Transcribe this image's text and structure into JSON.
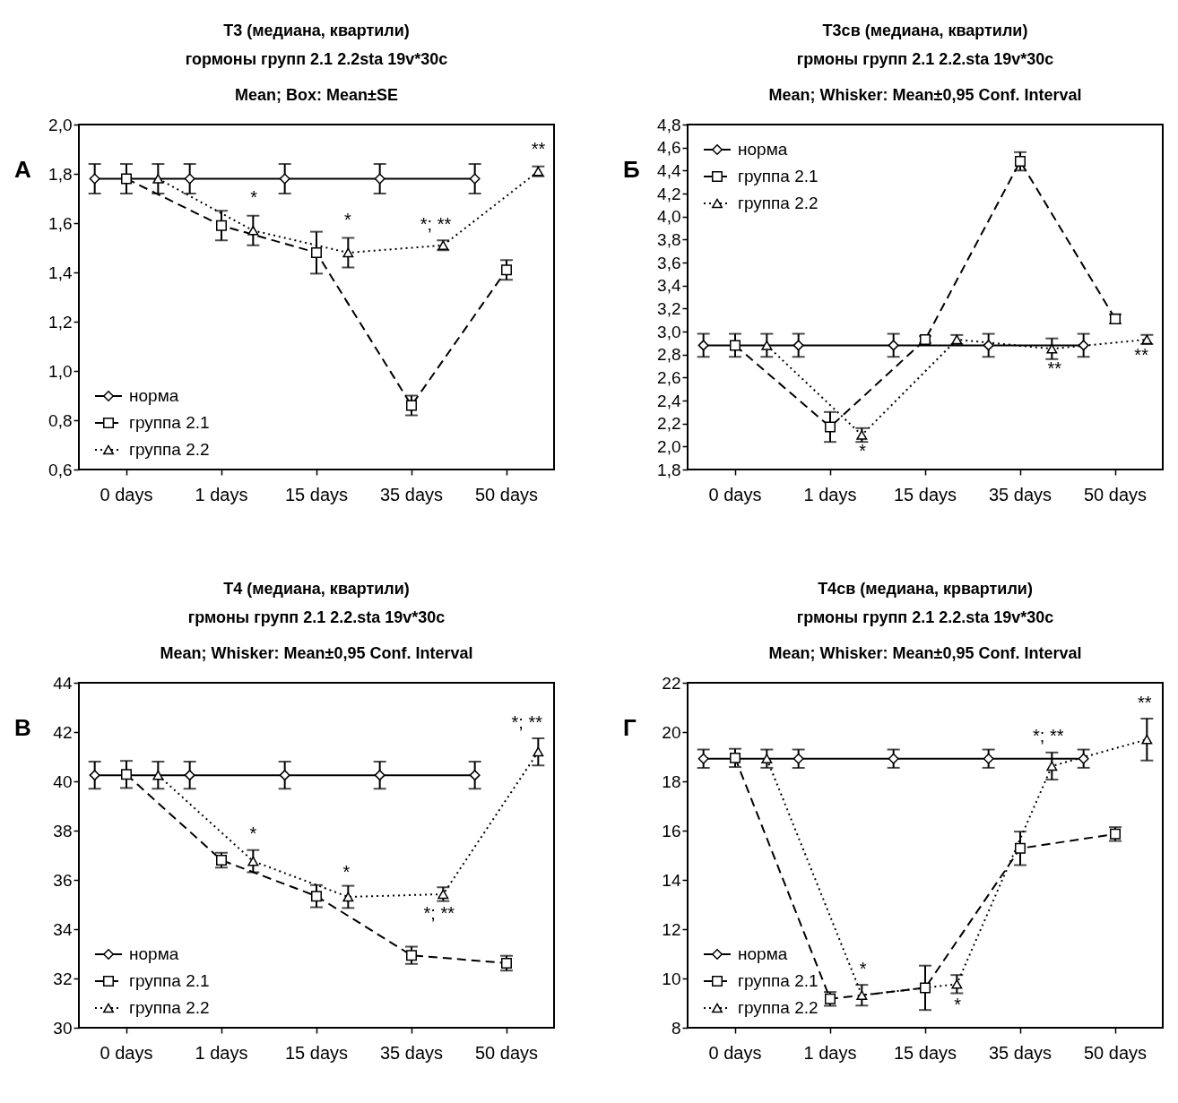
{
  "chart_data": [
    {
      "type": "line",
      "title": "T3 (медиана, квартили)",
      "subtitle": "гормоны групп 2.1 2.2sta 19v*30c\nMean; Box: Mean±SE",
      "categories": [
        null,
        "0 days",
        null,
        null,
        "1 days",
        null,
        null,
        "15 days",
        null,
        null,
        "35 days",
        null,
        null,
        "50 days",
        null
      ],
      "ylim": [
        0.6,
        2.0
      ],
      "yticks": [
        {
          "value": 0.6,
          "label": "0,6"
        },
        {
          "value": 0.8,
          "label": "0,8"
        },
        {
          "value": 1.0,
          "label": "1,0"
        },
        {
          "value": 1.2,
          "label": "1,2"
        },
        {
          "value": 1.4,
          "label": "1,4"
        },
        {
          "value": 1.6,
          "label": "1,6"
        },
        {
          "value": 1.8,
          "label": "1,8"
        },
        {
          "value": 2.0,
          "label": "2,0"
        }
      ],
      "grid": false,
      "legend": "bottom left",
      "series": [
        {
          "name": "норма",
          "color": "#000000",
          "marker": "diamond",
          "line_style": "solid",
          "values": [
            1.78,
            null,
            null,
            1.78,
            null,
            null,
            1.78,
            null,
            null,
            1.78,
            null,
            null,
            1.78,
            null,
            null
          ],
          "errors": [
            0.06,
            null,
            null,
            0.06,
            null,
            null,
            0.06,
            null,
            null,
            0.06,
            null,
            null,
            0.06,
            null,
            null
          ]
        },
        {
          "name": "группа 2.1",
          "color": "#000000",
          "marker": "square",
          "line_style": "dashed",
          "values": [
            null,
            1.78,
            null,
            null,
            1.59,
            null,
            null,
            1.48,
            null,
            null,
            0.86,
            null,
            null,
            1.41,
            null
          ],
          "errors": [
            null,
            0.06,
            null,
            null,
            0.06,
            null,
            null,
            0.085,
            null,
            null,
            0.04,
            null,
            null,
            0.04,
            null
          ]
        },
        {
          "name": "группа 2.2",
          "color": "#000000",
          "marker": "triangle",
          "line_style": "dotted",
          "values": [
            null,
            null,
            1.78,
            null,
            null,
            1.57,
            null,
            null,
            1.48,
            null,
            null,
            1.51,
            null,
            null,
            1.81
          ],
          "errors": [
            null,
            null,
            0.06,
            null,
            null,
            0.06,
            null,
            null,
            0.06,
            null,
            null,
            0.02,
            null,
            null,
            0.02
          ]
        }
      ],
      "annotations": [
        "*",
        "*",
        "*; **",
        "**",
        "А"
      ]
    },
    {
      "type": "line",
      "title": "T3св (медиана, квартили)",
      "subtitle": "грмоны групп 2.1 2.2.sta 19v*30c\nMean; Whisker: Mean±0,95 Conf. Interval",
      "categories": [
        null,
        "0 days",
        null,
        null,
        "1 days",
        null,
        null,
        "15 days",
        null,
        null,
        "35 days",
        null,
        null,
        "50 days",
        null
      ],
      "ylim": [
        1.8,
        4.8
      ],
      "yticks": [
        {
          "value": 1.8,
          "label": "1,8"
        },
        {
          "value": 2.0,
          "label": "2,0"
        },
        {
          "value": 2.2,
          "label": "2,2"
        },
        {
          "value": 2.4,
          "label": "2,4"
        },
        {
          "value": 2.6,
          "label": "2,6"
        },
        {
          "value": 2.8,
          "label": "2,8"
        },
        {
          "value": 3.0,
          "label": "3,0"
        },
        {
          "value": 3.2,
          "label": "3,2"
        },
        {
          "value": 3.4,
          "label": "3,4"
        },
        {
          "value": 3.6,
          "label": "3,6"
        },
        {
          "value": 3.8,
          "label": "3,8"
        },
        {
          "value": 4.0,
          "label": "4,0"
        },
        {
          "value": 4.2,
          "label": "4,2"
        },
        {
          "value": 4.4,
          "label": "4,4"
        },
        {
          "value": 4.6,
          "label": "4,6"
        },
        {
          "value": 4.8,
          "label": "4,8"
        }
      ],
      "grid": false,
      "legend": "top left",
      "series": [
        {
          "name": "норма",
          "color": "#000000",
          "marker": "diamond",
          "line_style": "solid",
          "values": [
            2.88,
            null,
            null,
            2.88,
            null,
            null,
            2.88,
            null,
            null,
            2.88,
            null,
            null,
            2.88,
            null,
            null
          ],
          "errors": [
            0.1,
            null,
            null,
            0.1,
            null,
            null,
            0.1,
            null,
            null,
            0.1,
            null,
            null,
            0.1,
            null,
            null
          ]
        },
        {
          "name": "группа 2.1",
          "color": "#000000",
          "marker": "square",
          "line_style": "dashed",
          "values": [
            null,
            2.88,
            null,
            null,
            2.17,
            null,
            null,
            2.93,
            null,
            null,
            4.48,
            null,
            null,
            3.11,
            null
          ],
          "errors": [
            null,
            0.1,
            null,
            null,
            0.13,
            null,
            null,
            0.03,
            null,
            null,
            0.08,
            null,
            null,
            0.04,
            null
          ]
        },
        {
          "name": "группа 2.2",
          "color": "#000000",
          "marker": "triangle",
          "line_style": "dotted",
          "values": [
            null,
            null,
            2.88,
            null,
            null,
            2.1,
            null,
            null,
            2.93,
            null,
            null,
            2.85,
            null,
            null,
            2.93
          ],
          "errors": [
            null,
            null,
            0.1,
            null,
            null,
            0.06,
            null,
            null,
            0.04,
            null,
            null,
            0.09,
            null,
            null,
            0.04
          ]
        }
      ],
      "annotations": [
        "*",
        "**",
        "**",
        "Б"
      ]
    },
    {
      "type": "line",
      "title": "T4 (медиана, квартили)",
      "subtitle": "грмоны групп 2.1 2.2.sta 19v*30c\nMean; Whisker: Mean±0,95 Conf. Interval",
      "categories": [
        null,
        "0 days",
        null,
        null,
        "1 days",
        null,
        null,
        "15 days",
        null,
        null,
        "35 days",
        null,
        null,
        "50 days",
        null
      ],
      "ylim": [
        30,
        44
      ],
      "yticks": [
        30,
        32,
        34,
        36,
        38,
        40,
        42,
        44
      ],
      "grid": false,
      "legend": "bottom left",
      "series": [
        {
          "name": "норма",
          "color": "#000000",
          "marker": "diamond",
          "line_style": "solid",
          "values": [
            40.25,
            null,
            null,
            40.25,
            null,
            null,
            40.25,
            null,
            null,
            40.25,
            null,
            null,
            40.25,
            null,
            null
          ],
          "errors": [
            0.55,
            null,
            null,
            0.55,
            null,
            null,
            0.55,
            null,
            null,
            0.55,
            null,
            null,
            0.55,
            null,
            null
          ]
        },
        {
          "name": "группа 2.1",
          "color": "#000000",
          "marker": "square",
          "line_style": "dashed",
          "values": [
            null,
            40.28,
            null,
            null,
            36.8,
            null,
            null,
            35.34,
            null,
            null,
            32.94,
            null,
            null,
            32.62,
            null
          ],
          "errors": [
            null,
            0.55,
            null,
            null,
            0.3,
            null,
            null,
            0.45,
            null,
            null,
            0.35,
            null,
            null,
            0.3,
            null
          ]
        },
        {
          "name": "группа 2.2",
          "color": "#000000",
          "marker": "triangle",
          "line_style": "dotted",
          "values": [
            null,
            null,
            40.25,
            null,
            null,
            36.76,
            null,
            null,
            35.31,
            null,
            null,
            35.42,
            null,
            null,
            41.2
          ],
          "errors": [
            null,
            null,
            0.55,
            null,
            null,
            0.45,
            null,
            null,
            0.45,
            null,
            null,
            0.28,
            null,
            null,
            0.55
          ]
        }
      ],
      "annotations": [
        "*",
        "*",
        "*; **",
        "*; **",
        "В"
      ]
    },
    {
      "type": "line",
      "title": "T4св (медиана, крвартили)",
      "subtitle": "грмоны групп 2.1 2.2.sta 19v*30c\nMean; Whisker: Mean±0,95 Conf. Interval",
      "categories": [
        null,
        "0 days",
        null,
        null,
        "1 days",
        null,
        null,
        "15 days",
        null,
        null,
        "35 days",
        null,
        null,
        "50 days",
        null
      ],
      "ylim": [
        8,
        22
      ],
      "yticks": [
        8,
        10,
        12,
        14,
        16,
        18,
        20,
        22
      ],
      "grid": false,
      "legend": "bottom left",
      "series": [
        {
          "name": "норма",
          "color": "#000000",
          "marker": "diamond",
          "line_style": "solid",
          "values": [
            18.92,
            null,
            null,
            18.92,
            null,
            null,
            18.92,
            null,
            null,
            18.92,
            null,
            null,
            18.92,
            null,
            null
          ],
          "errors": [
            0.37,
            null,
            null,
            0.37,
            null,
            null,
            0.37,
            null,
            null,
            0.37,
            null,
            null,
            0.37,
            null,
            null
          ]
        },
        {
          "name": "группа 2.1",
          "color": "#000000",
          "marker": "square",
          "line_style": "dashed",
          "values": [
            null,
            18.95,
            null,
            null,
            9.17,
            null,
            null,
            9.62,
            null,
            null,
            15.28,
            null,
            null,
            15.86,
            null
          ],
          "errors": [
            null,
            0.37,
            null,
            null,
            0.28,
            null,
            null,
            0.9,
            null,
            null,
            0.68,
            null,
            null,
            0.28,
            null
          ]
        },
        {
          "name": "группа 2.2",
          "color": "#000000",
          "marker": "triangle",
          "line_style": "dotted",
          "values": [
            null,
            null,
            18.92,
            null,
            null,
            9.32,
            null,
            null,
            9.77,
            null,
            null,
            18.62,
            null,
            null,
            19.7
          ],
          "errors": [
            null,
            null,
            0.37,
            null,
            null,
            0.42,
            null,
            null,
            0.37,
            null,
            null,
            0.55,
            null,
            null,
            0.85
          ]
        }
      ],
      "annotations": [
        "*",
        "*",
        "*; **",
        "**",
        "Г"
      ]
    }
  ]
}
